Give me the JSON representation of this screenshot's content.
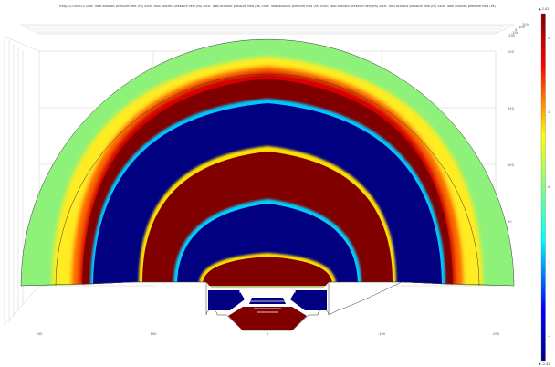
{
  "title": "freq(32)=4000.0   Slice: Total acoustic pressure field (Pa)   Slice: Total acoustic pressure field (Pa)   Slice: Total acoustic pressure field (Pa)   Slice: Total acoustic pressure field (Pa)   Slice: Total acoustic pressure field (Pa)   Slice: Total acoustic pressure field (Pa)   Slice: Total acoustic pressure field (Pa)",
  "x_ticks": [
    "200",
    "100",
    "0",
    "-100",
    "-200"
  ],
  "y_ticks": [
    "200",
    "150",
    "100",
    "50"
  ],
  "depth_ticks": [
    "-200",
    "-100",
    "0",
    "100",
    "200"
  ],
  "colorbar": {
    "max_label": "▲ 2.42",
    "min_label": "▼ -2.42",
    "tick_labels": [
      "2",
      "1",
      "0",
      "-1",
      "-2"
    ],
    "gradient": [
      "#000080",
      "#0000ff",
      "#00ffff",
      "#7fff7f",
      "#ffff00",
      "#ff0000",
      "#800000"
    ]
  },
  "colors": {
    "near_zero": "#8ef27a",
    "positive_max": "#800000",
    "negative_max": "#000080"
  }
}
